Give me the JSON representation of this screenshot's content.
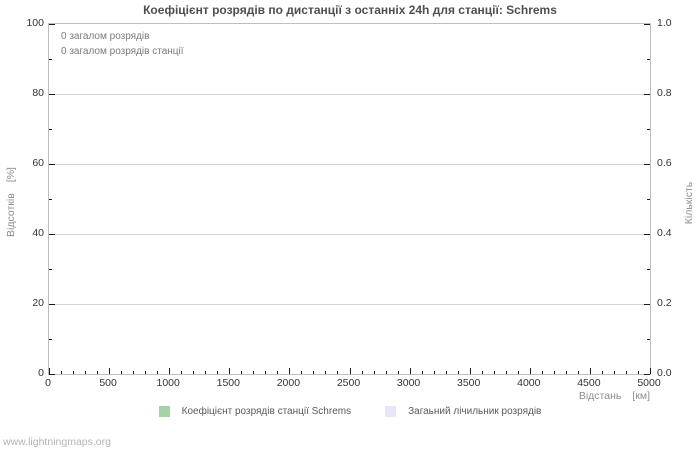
{
  "page": {
    "watermark": "www.lightningmaps.org"
  },
  "chart_data": {
    "type": "line",
    "title": "Коефіцієнт розрядів по дистанції з останніх 24h для станції: Schrems",
    "x_axis": {
      "label": "Відстань",
      "unit": "[км]",
      "lim": [
        0,
        5000
      ],
      "ticks_major": [
        0,
        500,
        1000,
        1500,
        2000,
        2500,
        3000,
        3500,
        4000,
        4500,
        5000
      ],
      "minor_step": 100
    },
    "y_axis_left": {
      "label": "Відсотків",
      "unit": "[%]",
      "lim": [
        0,
        100
      ],
      "ticks_major": [
        100,
        80,
        60,
        40,
        20,
        0
      ],
      "minor_step": 10
    },
    "y_axis_right": {
      "label": "Кількість",
      "lim": [
        0,
        1
      ],
      "ticks_major": [
        "1.0",
        "0.8",
        "0.6",
        "0.4",
        "0.2",
        "0.0"
      ],
      "minor_step": 0.1
    },
    "grid": "horizontal-major",
    "legend_position": "bottom-center",
    "annotations": [
      "0 загалом розрядів",
      "0 загалом розрядів станції"
    ],
    "series": [
      {
        "name": "Коефіцієнт розрядів станції Schrems",
        "color": "#a5d3a5",
        "points": []
      },
      {
        "name": "Загаьний лічильник розрядів",
        "color": "#e6e6f8",
        "points": []
      }
    ]
  }
}
